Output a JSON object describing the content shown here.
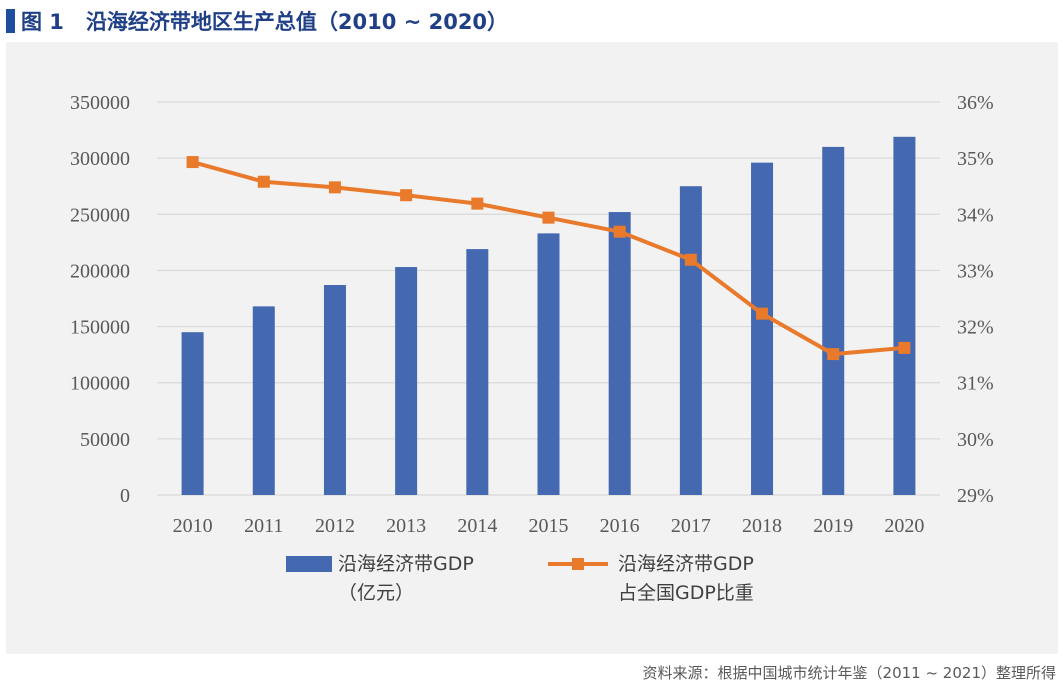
{
  "figure": {
    "number": "图 1",
    "title": "沿海经济带地区生产总值（2010 ~ 2020）",
    "source": "资料来源：根据中国城市统计年鉴（2011 ~ 2021）整理所得"
  },
  "colors": {
    "bar": "#4569b0",
    "line": "#e9792b",
    "grid": "#d9d9d9",
    "title": "#1f3f86",
    "panel": "#f2f2f2"
  },
  "chart_data": {
    "type": "bar+line",
    "categories": [
      "2010",
      "2011",
      "2012",
      "2013",
      "2014",
      "2015",
      "2016",
      "2017",
      "2018",
      "2019",
      "2020"
    ],
    "series": [
      {
        "name": "沿海经济带GDP（亿元）",
        "legend_lines": [
          "沿海经济带GDP",
          "（亿元）"
        ],
        "type": "bar",
        "axis": "left",
        "values": [
          145000,
          168000,
          187000,
          203000,
          219000,
          233000,
          252000,
          275000,
          296000,
          310000,
          319000
        ]
      },
      {
        "name": "沿海经济带GDP占全国GDP比重",
        "legend_lines": [
          "沿海经济带GDP",
          "占全国GDP比重"
        ],
        "type": "line",
        "axis": "right",
        "marker": "square",
        "values": [
          34.93,
          34.58,
          34.48,
          34.34,
          34.19,
          33.94,
          33.69,
          33.19,
          32.23,
          31.51,
          31.62
        ]
      }
    ],
    "y_left": {
      "range": [
        0,
        350000
      ],
      "ticks": [
        0,
        50000,
        100000,
        150000,
        200000,
        250000,
        300000,
        350000
      ],
      "tick_labels": [
        "0",
        "50000",
        "100000",
        "150000",
        "200000",
        "250000",
        "300000",
        "350000"
      ]
    },
    "y_right": {
      "range": [
        29,
        36
      ],
      "ticks": [
        29,
        30,
        31,
        32,
        33,
        34,
        35,
        36
      ],
      "tick_labels": [
        "29%",
        "30%",
        "31%",
        "32%",
        "33%",
        "34%",
        "35%",
        "36%"
      ]
    },
    "grid": true,
    "legend_position": "bottom"
  }
}
